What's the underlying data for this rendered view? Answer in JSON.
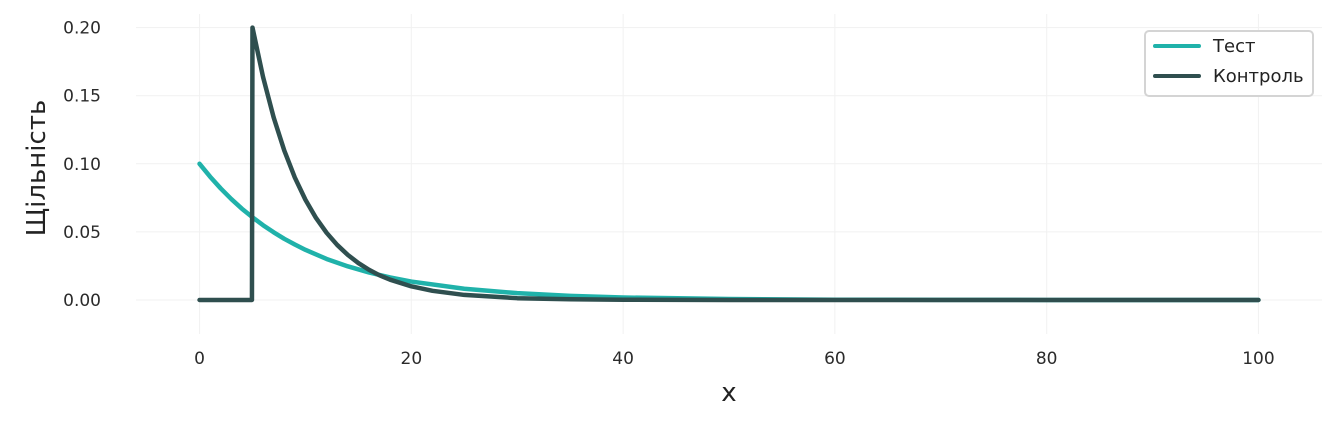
{
  "chart_data": {
    "type": "line",
    "title": "",
    "xlabel": "x",
    "ylabel": "Щільність",
    "xlim": [
      -6,
      106
    ],
    "ylim": [
      -0.025,
      0.21
    ],
    "xticks": [
      0,
      20,
      40,
      60,
      80,
      100
    ],
    "yticks": [
      0.0,
      0.05,
      0.1,
      0.15,
      0.2
    ],
    "xtick_labels": [
      "0",
      "20",
      "40",
      "60",
      "80",
      "100"
    ],
    "ytick_labels": [
      "0.00",
      "0.05",
      "0.10",
      "0.15",
      "0.20"
    ],
    "grid": true,
    "legend": {
      "position": "top-right",
      "entries": [
        "Тест",
        "Контроль"
      ]
    },
    "series": [
      {
        "name": "Тест",
        "color": "#20b2aa",
        "x": [
          0,
          1,
          2,
          3,
          4,
          5,
          6,
          7,
          8,
          9,
          10,
          12,
          14,
          16,
          18,
          20,
          25,
          30,
          35,
          40,
          50,
          60,
          70,
          80,
          90,
          100
        ],
        "y": [
          0.1,
          0.0905,
          0.0819,
          0.0741,
          0.067,
          0.0607,
          0.0549,
          0.0497,
          0.0449,
          0.0407,
          0.0368,
          0.0301,
          0.0247,
          0.0202,
          0.0165,
          0.0135,
          0.0082,
          0.005,
          0.003,
          0.0018,
          0.0007,
          0.0002,
          0.0001,
          0.0,
          0.0,
          0.0
        ]
      },
      {
        "name": "Контроль",
        "color": "#2f4f4f",
        "x": [
          0,
          4.95,
          5,
          6,
          7,
          8,
          9,
          10,
          11,
          12,
          13,
          14,
          15,
          16,
          17,
          18,
          20,
          22,
          25,
          30,
          35,
          40,
          50,
          60,
          80,
          100
        ],
        "y": [
          0.0,
          0.0,
          0.2,
          0.1637,
          0.134,
          0.1098,
          0.0899,
          0.0736,
          0.0602,
          0.0493,
          0.0404,
          0.0331,
          0.0271,
          0.0222,
          0.0181,
          0.0149,
          0.01,
          0.0067,
          0.0037,
          0.0013,
          0.0005,
          0.0002,
          0.0,
          0.0,
          0.0,
          0.0
        ]
      }
    ]
  }
}
